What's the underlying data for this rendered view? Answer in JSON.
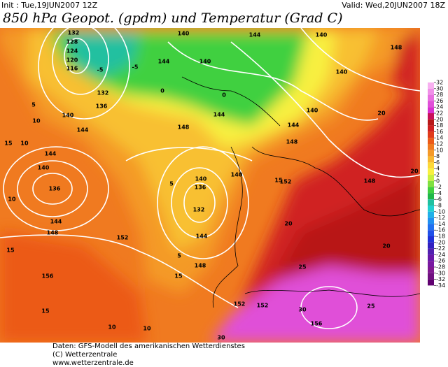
{
  "header": {
    "init": "Init : Tue,19JUN2007 12Z",
    "valid": "Valid: Wed,20JUN2007 18Z",
    "title": "850 hPa Geopot. (gpdm) und Temperatur (Grad C)"
  },
  "map": {
    "contour_labels": [
      "132",
      "128",
      "124",
      "120",
      "116",
      "-5",
      "-5",
      "132",
      "136",
      "140",
      "144",
      "140",
      "144",
      "140",
      "144",
      "140",
      "148",
      "140",
      "144",
      "148",
      "144",
      "148",
      "140",
      "144",
      "140",
      "136",
      "144",
      "148",
      "152",
      "140",
      "136",
      "132",
      "144",
      "148",
      "140",
      "152",
      "148",
      "156",
      "152",
      "152",
      "156",
      "10",
      "15",
      "10",
      "15",
      "5",
      "10",
      "15",
      "10",
      "10",
      "15",
      "5",
      "5",
      "0",
      "0",
      "20",
      "25",
      "30",
      "25",
      "20",
      "20",
      "15",
      "20",
      "30"
    ]
  },
  "colorbar": {
    "ticks": [
      32,
      30,
      28,
      26,
      24,
      22,
      20,
      18,
      16,
      14,
      12,
      10,
      8,
      6,
      4,
      2,
      0,
      -2,
      -4,
      -6,
      -8,
      -10,
      -12,
      -14,
      -16,
      -18,
      -20,
      -22,
      -24,
      -26,
      -28,
      -30,
      -32,
      -34
    ],
    "colors": [
      "#f8b0f0",
      "#f090e8",
      "#e870e0",
      "#e050d8",
      "#d830d0",
      "#c8105a",
      "#b81818",
      "#d02020",
      "#e03a1a",
      "#ec5a18",
      "#f07a20",
      "#f49a28",
      "#f8b830",
      "#fcd838",
      "#f8f040",
      "#c8f040",
      "#80e040",
      "#40d040",
      "#20b848",
      "#20c0a0",
      "#20d0d0",
      "#20b0e8",
      "#2090f0",
      "#2070f0",
      "#2050e8",
      "#2030d8",
      "#3020c0",
      "#5020b0",
      "#6818a8",
      "#7818a0",
      "#801890",
      "#701080",
      "#600070"
    ]
  },
  "footer": {
    "lines": [
      "Daten: GFS-Modell des amerikanischen Wetterdienstes",
      "(C) Wetterzentrale",
      "www.wetterzentrale.de"
    ]
  }
}
